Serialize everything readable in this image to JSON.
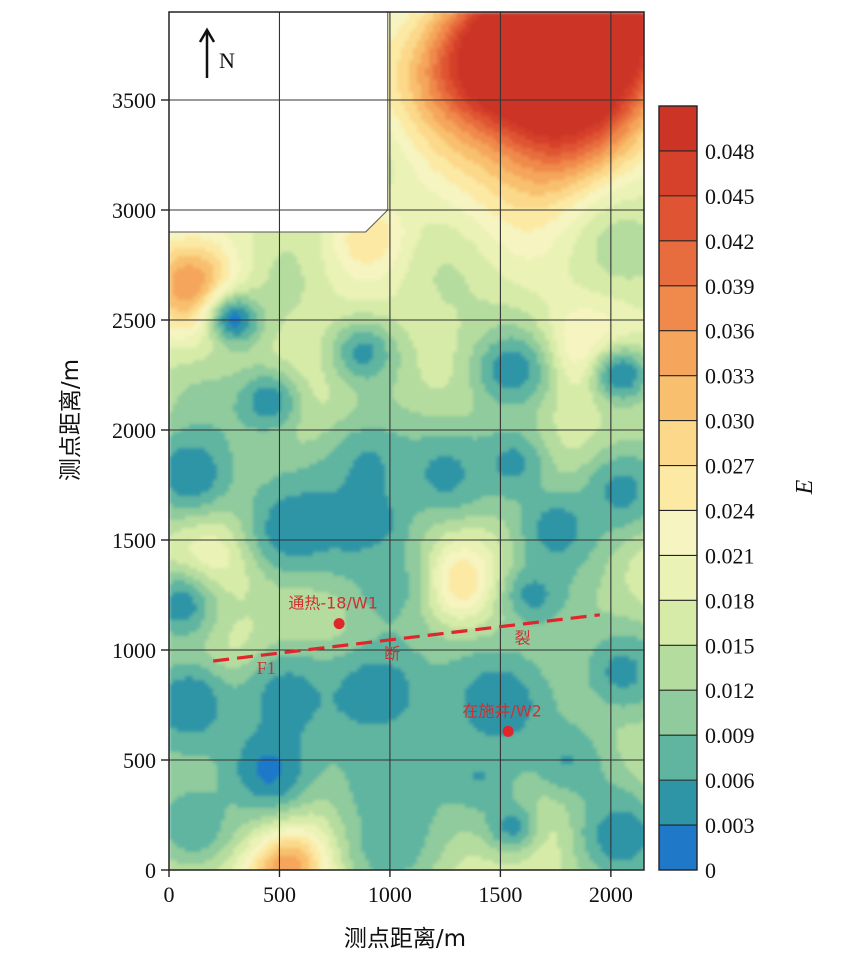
{
  "chart_data": {
    "type": "heatmap",
    "title": "",
    "xlabel": "测点距离/m",
    "ylabel": "测点距离/m",
    "xlim": [
      0,
      2150
    ],
    "ylim": [
      0,
      3900
    ],
    "x_ticks": [
      0,
      500,
      1000,
      1500,
      2000
    ],
    "y_ticks": [
      0,
      500,
      1000,
      1500,
      2000,
      2500,
      3000,
      3500
    ],
    "colorbar": {
      "title": "E",
      "ticks": [
        "0",
        "0.003",
        "0.006",
        "0.009",
        "0.012",
        "0.015",
        "0.018",
        "0.021",
        "0.024",
        "0.027",
        "0.030",
        "0.033",
        "0.036",
        "0.039",
        "0.042",
        "0.045",
        "0.048"
      ],
      "range": [
        0,
        0.051
      ],
      "colors": [
        "#1f78c8",
        "#2e95a6",
        "#5fb5a0",
        "#8fcb9c",
        "#b5dc9f",
        "#d6eba8",
        "#eaf2b6",
        "#f6f4c0",
        "#fbe9a4",
        "#fbd88a",
        "#f8c06e",
        "#f5a65c",
        "#ef8a4c",
        "#e86d3e",
        "#df5533",
        "#d6412c",
        "#cc3426"
      ]
    },
    "no_data_region_polygon": [
      [
        0,
        2900
      ],
      [
        890,
        2900
      ],
      [
        990,
        3000
      ],
      [
        990,
        3900
      ],
      [
        0,
        3900
      ]
    ],
    "north_arrow_label": "N",
    "fault": {
      "points": [
        [
          200,
          950
        ],
        [
          1950,
          1160
        ]
      ],
      "labels": [
        {
          "text": "F1",
          "x": 440,
          "y": 890
        },
        {
          "text": "断",
          "x": 1010,
          "y": 960
        },
        {
          "text": "裂",
          "x": 1600,
          "y": 1030
        }
      ]
    },
    "wells": [
      {
        "label": "通热-18/W1",
        "x": 770,
        "y": 1120
      },
      {
        "label": "在施井/W2",
        "x": 1535,
        "y": 630
      }
    ],
    "field_hotspots": [
      {
        "x": 1950,
        "y": 3800,
        "value": 0.05,
        "r": 300
      },
      {
        "x": 1650,
        "y": 3700,
        "value": 0.046,
        "r": 260
      },
      {
        "x": 1300,
        "y": 3650,
        "value": 0.036,
        "r": 220
      },
      {
        "x": 1700,
        "y": 3250,
        "value": 0.032,
        "r": 220
      },
      {
        "x": 100,
        "y": 2650,
        "value": 0.033,
        "r": 160
      },
      {
        "x": 530,
        "y": 20,
        "value": 0.04,
        "r": 150
      },
      {
        "x": 1280,
        "y": 1300,
        "value": 0.029,
        "r": 120
      },
      {
        "x": 300,
        "y": 950,
        "value": 0.028,
        "r": 140
      },
      {
        "x": 1850,
        "y": 2350,
        "value": 0.027,
        "r": 140
      },
      {
        "x": 900,
        "y": 2900,
        "value": 0.027,
        "r": 130
      },
      {
        "x": 1650,
        "y": 250,
        "value": 0.027,
        "r": 160
      },
      {
        "x": 250,
        "y": 1450,
        "value": 0.024,
        "r": 150
      }
    ],
    "field_lows": [
      {
        "x": 300,
        "y": 2500,
        "value": 0.002,
        "r": 90
      },
      {
        "x": 880,
        "y": 2350,
        "value": 0.005,
        "r": 110
      },
      {
        "x": 450,
        "y": 2130,
        "value": 0.004,
        "r": 120
      },
      {
        "x": 1550,
        "y": 2270,
        "value": 0.004,
        "r": 140
      },
      {
        "x": 2050,
        "y": 2250,
        "value": 0.003,
        "r": 110
      },
      {
        "x": 100,
        "y": 1800,
        "value": 0.003,
        "r": 170
      },
      {
        "x": 900,
        "y": 1850,
        "value": 0.006,
        "r": 180
      },
      {
        "x": 1250,
        "y": 1800,
        "value": 0.005,
        "r": 160
      },
      {
        "x": 1560,
        "y": 1850,
        "value": 0.005,
        "r": 130
      },
      {
        "x": 2050,
        "y": 1720,
        "value": 0.005,
        "r": 150
      },
      {
        "x": 550,
        "y": 1550,
        "value": 0.004,
        "r": 200
      },
      {
        "x": 900,
        "y": 1550,
        "value": 0.003,
        "r": 150
      },
      {
        "x": 1750,
        "y": 1550,
        "value": 0.004,
        "r": 140
      },
      {
        "x": 1650,
        "y": 1250,
        "value": 0.005,
        "r": 120
      },
      {
        "x": 1000,
        "y": 1300,
        "value": 0.008,
        "r": 150
      },
      {
        "x": 50,
        "y": 1200,
        "value": 0.004,
        "r": 120
      },
      {
        "x": 100,
        "y": 760,
        "value": 0.003,
        "r": 170
      },
      {
        "x": 520,
        "y": 800,
        "value": 0.005,
        "r": 200
      },
      {
        "x": 950,
        "y": 800,
        "value": 0.003,
        "r": 200
      },
      {
        "x": 1500,
        "y": 750,
        "value": 0.004,
        "r": 220
      },
      {
        "x": 2050,
        "y": 900,
        "value": 0.005,
        "r": 180
      },
      {
        "x": 450,
        "y": 450,
        "value": 0.002,
        "r": 160
      },
      {
        "x": 1000,
        "y": 380,
        "value": 0.006,
        "r": 180
      },
      {
        "x": 1400,
        "y": 430,
        "value": 0.006,
        "r": 150
      },
      {
        "x": 1800,
        "y": 500,
        "value": 0.006,
        "r": 150
      },
      {
        "x": 100,
        "y": 200,
        "value": 0.006,
        "r": 170
      },
      {
        "x": 1550,
        "y": 200,
        "value": 0.005,
        "r": 120
      },
      {
        "x": 2050,
        "y": 150,
        "value": 0.004,
        "r": 170
      },
      {
        "x": 1000,
        "y": 100,
        "value": 0.007,
        "r": 170
      }
    ]
  }
}
